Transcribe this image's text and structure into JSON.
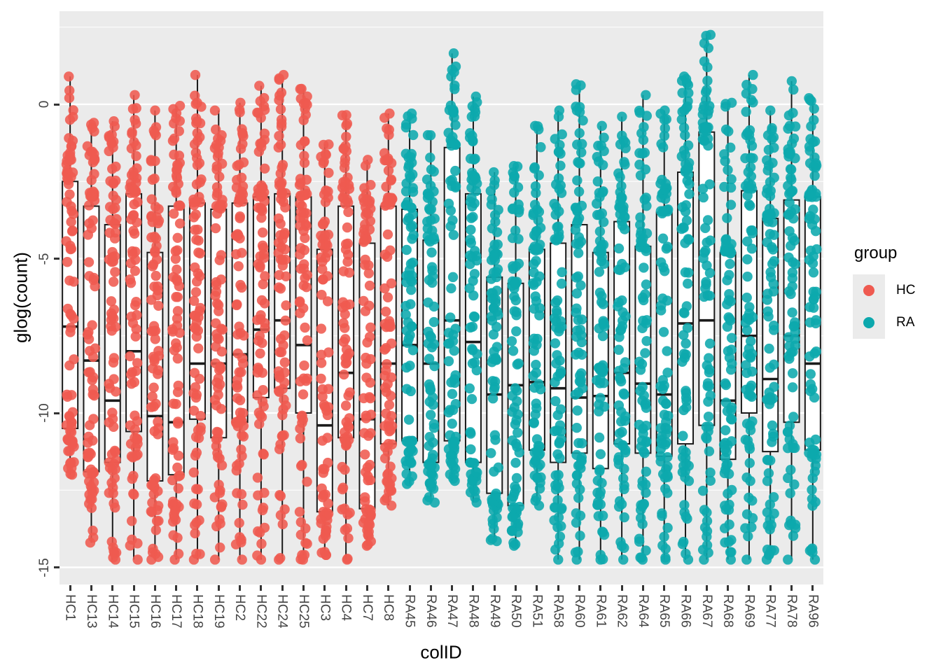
{
  "axes": {
    "x_title": "colID",
    "y_title": "glog(count)",
    "y_tick_labels": [
      "0",
      "-5",
      "-10",
      "-15"
    ]
  },
  "legend": {
    "title": "group",
    "items": [
      {
        "label": "HC",
        "color": "#EF5A50"
      },
      {
        "label": "RA",
        "color": "#0CA8AD"
      }
    ]
  },
  "style": {
    "panel_bg": "#EBEBEB",
    "grid_color": "#FFFFFF",
    "box_stroke": "#1A1A1A",
    "box_fill": "#FFFFFF",
    "hc_color": "#EF5A50",
    "ra_color": "#0CA8AD",
    "axis_text_color": "#444444"
  },
  "chart_data": {
    "type": "boxplot-jitter",
    "title": "",
    "xlabel": "colID",
    "ylabel": "glog(count)",
    "ylim": [
      -15.55,
      3.0
    ],
    "yticks": [
      0,
      -5,
      -10,
      -15
    ],
    "yticks_minor": [
      2.5,
      -2.5,
      -7.5,
      -12.5
    ],
    "grid": true,
    "legend_position": "right",
    "floor_value": -14.75,
    "series_key": "group",
    "columns": [
      {
        "id": "HC1",
        "group": "HC",
        "whisker_low": -12.0,
        "q1": -10.5,
        "median": -7.2,
        "q3": -2.5,
        "whisker_high": 0.9,
        "floor_point": false
      },
      {
        "id": "HC13",
        "group": "HC",
        "whisker_low": -14.2,
        "q1": -11.9,
        "median": -8.3,
        "q3": -3.3,
        "whisker_high": -0.6,
        "floor_point": false
      },
      {
        "id": "HC14",
        "group": "HC",
        "whisker_low": -14.75,
        "q1": -11.6,
        "median": -9.6,
        "q3": -3.9,
        "whisker_high": -0.55,
        "floor_point": true
      },
      {
        "id": "HC15",
        "group": "HC",
        "whisker_low": -14.75,
        "q1": -10.6,
        "median": -8.0,
        "q3": -2.9,
        "whisker_high": 0.3,
        "floor_point": true
      },
      {
        "id": "HC16",
        "group": "HC",
        "whisker_low": -14.75,
        "q1": -12.2,
        "median": -10.1,
        "q3": -4.8,
        "whisker_high": -0.2,
        "floor_point": true
      },
      {
        "id": "HC17",
        "group": "HC",
        "whisker_low": -14.75,
        "q1": -12.0,
        "median": -10.3,
        "q3": -3.3,
        "whisker_high": -0.05,
        "floor_point": true
      },
      {
        "id": "HC18",
        "group": "HC",
        "whisker_low": -14.75,
        "q1": -10.2,
        "median": -8.4,
        "q3": -3.2,
        "whisker_high": 0.95,
        "floor_point": true
      },
      {
        "id": "HC19",
        "group": "HC",
        "whisker_low": -14.75,
        "q1": -10.8,
        "median": -8.4,
        "q3": -3.4,
        "whisker_high": -0.2,
        "floor_point": true
      },
      {
        "id": "HC2",
        "group": "HC",
        "whisker_low": -14.75,
        "q1": -10.3,
        "median": -8.1,
        "q3": -3.2,
        "whisker_high": 0.05,
        "floor_point": true
      },
      {
        "id": "HC22",
        "group": "HC",
        "whisker_low": -14.75,
        "q1": -9.5,
        "median": -7.3,
        "q3": -3.0,
        "whisker_high": 0.6,
        "floor_point": true
      },
      {
        "id": "HC24",
        "group": "HC",
        "whisker_low": -14.75,
        "q1": -9.2,
        "median": -7.0,
        "q3": -2.9,
        "whisker_high": 0.95,
        "floor_point": true
      },
      {
        "id": "HC25",
        "group": "HC",
        "whisker_low": -14.75,
        "q1": -10.0,
        "median": -7.8,
        "q3": -3.0,
        "whisker_high": 0.5,
        "floor_point": true
      },
      {
        "id": "HC3",
        "group": "HC",
        "whisker_low": -14.6,
        "q1": -13.2,
        "median": -10.4,
        "q3": -4.7,
        "whisker_high": -1.3,
        "floor_point": false
      },
      {
        "id": "HC4",
        "group": "HC",
        "whisker_low": -14.75,
        "q1": -10.8,
        "median": -8.7,
        "q3": -3.3,
        "whisker_high": -0.35,
        "floor_point": true
      },
      {
        "id": "HC7",
        "group": "HC",
        "whisker_low": -14.3,
        "q1": -13.1,
        "median": -10.2,
        "q3": -4.5,
        "whisker_high": -1.8,
        "floor_point": false
      },
      {
        "id": "HC8",
        "group": "HC",
        "whisker_low": -13.0,
        "q1": -11.0,
        "median": -8.4,
        "q3": -3.3,
        "whisker_high": -0.3,
        "floor_point": false
      },
      {
        "id": "RA45",
        "group": "RA",
        "whisker_low": -12.3,
        "q1": -10.9,
        "median": -7.8,
        "q3": -3.4,
        "whisker_high": -0.3,
        "floor_point": false
      },
      {
        "id": "RA46",
        "group": "RA",
        "whisker_low": -12.9,
        "q1": -11.6,
        "median": -8.4,
        "q3": -4.4,
        "whisker_high": -1.0,
        "floor_point": false
      },
      {
        "id": "RA47",
        "group": "RA",
        "whisker_low": -12.2,
        "q1": -10.9,
        "median": -7.0,
        "q3": -1.4,
        "whisker_high": 1.65,
        "floor_point": false
      },
      {
        "id": "RA48",
        "group": "RA",
        "whisker_low": -12.9,
        "q1": -11.6,
        "median": -7.7,
        "q3": -2.9,
        "whisker_high": 0.25,
        "floor_point": false
      },
      {
        "id": "RA49",
        "group": "RA",
        "whisker_low": -14.15,
        "q1": -12.6,
        "median": -9.4,
        "q3": -5.6,
        "whisker_high": -2.2,
        "floor_point": false
      },
      {
        "id": "RA50",
        "group": "RA",
        "whisker_low": -14.3,
        "q1": -13.0,
        "median": -9.1,
        "q3": -5.8,
        "whisker_high": -2.0,
        "floor_point": false
      },
      {
        "id": "RA51",
        "group": "RA",
        "whisker_low": -13.0,
        "q1": -11.2,
        "median": -9.0,
        "q3": -4.7,
        "whisker_high": -0.7,
        "floor_point": false
      },
      {
        "id": "RA58",
        "group": "RA",
        "whisker_low": -14.75,
        "q1": -11.6,
        "median": -9.2,
        "q3": -4.5,
        "whisker_high": -0.2,
        "floor_point": true
      },
      {
        "id": "RA60",
        "group": "RA",
        "whisker_low": -14.75,
        "q1": -11.3,
        "median": -9.5,
        "q3": -3.9,
        "whisker_high": 0.65,
        "floor_point": true
      },
      {
        "id": "RA61",
        "group": "RA",
        "whisker_low": -14.75,
        "q1": -11.8,
        "median": -9.45,
        "q3": -4.8,
        "whisker_high": -0.7,
        "floor_point": true
      },
      {
        "id": "RA62",
        "group": "RA",
        "whisker_low": -14.75,
        "q1": -11.0,
        "median": -8.7,
        "q3": -3.8,
        "whisker_high": -0.4,
        "floor_point": true
      },
      {
        "id": "RA64",
        "group": "RA",
        "whisker_low": -14.75,
        "q1": -11.3,
        "median": -9.05,
        "q3": -4.6,
        "whisker_high": 0.3,
        "floor_point": true
      },
      {
        "id": "RA65",
        "group": "RA",
        "whisker_low": -14.75,
        "q1": -11.4,
        "median": -9.4,
        "q3": -3.5,
        "whisker_high": -0.2,
        "floor_point": true
      },
      {
        "id": "RA66",
        "group": "RA",
        "whisker_low": -14.75,
        "q1": -11.0,
        "median": -7.1,
        "q3": -2.2,
        "whisker_high": 0.9,
        "floor_point": true
      },
      {
        "id": "RA67",
        "group": "RA",
        "whisker_low": -14.75,
        "q1": -10.4,
        "median": -7.0,
        "q3": -0.9,
        "whisker_high": 2.25,
        "floor_point": true
      },
      {
        "id": "RA68",
        "group": "RA",
        "whisker_low": -14.75,
        "q1": -11.5,
        "median": -9.6,
        "q3": -4.8,
        "whisker_high": 0.05,
        "floor_point": true
      },
      {
        "id": "RA69",
        "group": "RA",
        "whisker_low": -14.75,
        "q1": -10.0,
        "median": -7.5,
        "q3": -2.8,
        "whisker_high": 0.95,
        "floor_point": true
      },
      {
        "id": "RA77",
        "group": "RA",
        "whisker_low": -14.75,
        "q1": -11.25,
        "median": -8.9,
        "q3": -3.7,
        "whisker_high": -0.2,
        "floor_point": true
      },
      {
        "id": "RA78",
        "group": "RA",
        "whisker_low": -14.75,
        "q1": -10.3,
        "median": -7.5,
        "q3": -3.1,
        "whisker_high": 0.75,
        "floor_point": true
      },
      {
        "id": "RA96",
        "group": "RA",
        "whisker_low": -14.75,
        "q1": -11.2,
        "median": -8.4,
        "q3": -3.0,
        "whisker_high": 0.2,
        "floor_point": true
      }
    ],
    "jitter": {
      "n_in_box": 34,
      "n_upper": 24,
      "n_lower": 18,
      "seed_base": 97,
      "seed_step": 131
    }
  }
}
